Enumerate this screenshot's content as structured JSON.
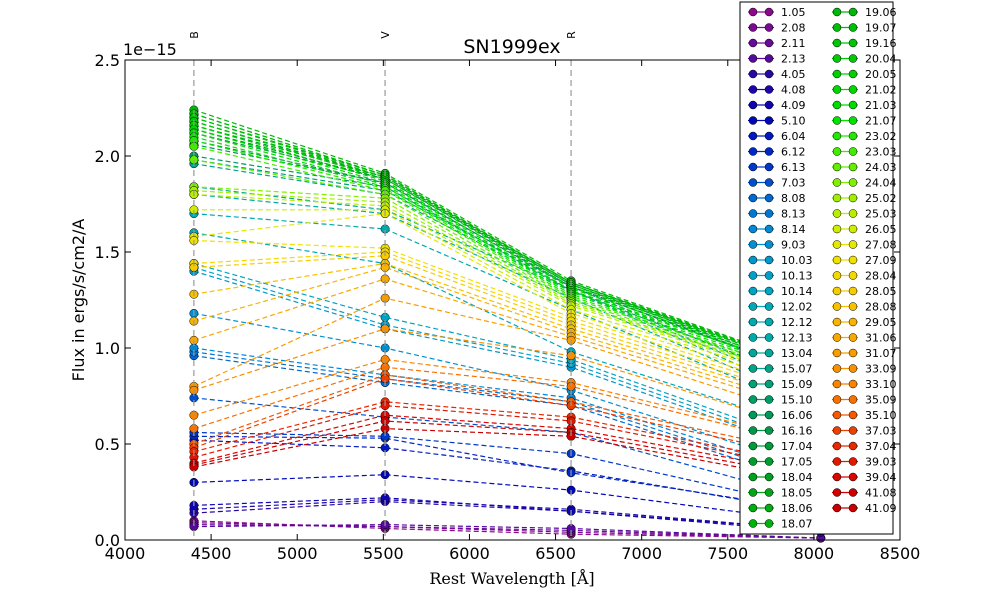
{
  "chart_data": {
    "type": "scatter",
    "title": "SN1999ex",
    "xlabel": "Rest Wavelength [Å]",
    "ylabel": "Flux in ergs/s/cm2/A",
    "y_offset_label": "1e−15",
    "xlim": [
      4000,
      8500
    ],
    "ylim": [
      0.0,
      2.5
    ],
    "x_ticks": [
      "4000",
      "4500",
      "5000",
      "5500",
      "6000",
      "6500",
      "7000",
      "7500",
      "8000",
      "8500"
    ],
    "y_ticks": [
      "0.0",
      "0.5",
      "1.0",
      "1.5",
      "2.0",
      "2.5"
    ],
    "band_markers": [
      {
        "name": "B",
        "x": 4400
      },
      {
        "name": "V",
        "x": 5510
      },
      {
        "name": "R",
        "x": 6590
      }
    ],
    "x": [
      4400,
      5510,
      6590,
      8040
    ],
    "grid": false,
    "legend_position": "top-right",
    "series": [
      {
        "name": "1.05",
        "color": "#8b0a8b",
        "values": [
          0.1,
          0.06,
          0.03,
          0.01
        ]
      },
      {
        "name": "2.08",
        "color": "#7a0a90",
        "values": [
          0.09,
          0.07,
          0.04,
          0.01
        ]
      },
      {
        "name": "2.11",
        "color": "#6a0a98",
        "values": [
          0.08,
          0.07,
          0.05,
          0.01
        ]
      },
      {
        "name": "2.13",
        "color": "#58099d",
        "values": [
          0.07,
          0.08,
          0.06,
          0.01
        ]
      },
      {
        "name": "4.05",
        "color": "#2a08a5",
        "values": [
          0.14,
          0.2,
          0.15,
          0.04
        ]
      },
      {
        "name": "4.08",
        "color": "#1c06aa",
        "values": [
          0.16,
          0.21,
          0.16,
          0.05
        ]
      },
      {
        "name": "4.09",
        "color": "#0d05b0",
        "values": [
          0.18,
          0.22,
          0.15,
          0.05
        ]
      },
      {
        "name": "5.10",
        "color": "#0008b8",
        "values": [
          0.3,
          0.34,
          0.26,
          0.09
        ]
      },
      {
        "name": "6.04",
        "color": "#0018c0",
        "values": [
          0.52,
          0.48,
          0.36,
          0.14
        ]
      },
      {
        "name": "6.12",
        "color": "#0028c4",
        "values": [
          0.54,
          0.53,
          0.35,
          0.15
        ]
      },
      {
        "name": "6.13",
        "color": "#0038c8",
        "values": [
          0.56,
          0.54,
          0.45,
          0.16
        ]
      },
      {
        "name": "7.03",
        "color": "#0050cc",
        "values": [
          0.74,
          0.64,
          0.56,
          0.2
        ]
      },
      {
        "name": "8.08",
        "color": "#0068d0",
        "values": [
          0.96,
          0.82,
          0.7,
          0.28
        ]
      },
      {
        "name": "8.13",
        "color": "#0078d2",
        "values": [
          0.98,
          0.84,
          0.72,
          0.3
        ]
      },
      {
        "name": "8.14",
        "color": "#0088d4",
        "values": [
          1.0,
          0.86,
          0.74,
          0.32
        ]
      },
      {
        "name": "9.03",
        "color": "#0090d2",
        "values": [
          1.18,
          1.0,
          0.78,
          0.36
        ]
      },
      {
        "name": "10.03",
        "color": "#0098cc",
        "values": [
          1.4,
          1.1,
          0.9,
          0.44
        ]
      },
      {
        "name": "10.13",
        "color": "#00a0c8",
        "values": [
          1.42,
          1.12,
          0.92,
          0.46
        ]
      },
      {
        "name": "10.14",
        "color": "#00a4c2",
        "values": [
          1.44,
          1.16,
          0.94,
          0.48
        ]
      },
      {
        "name": "12.02",
        "color": "#00a8b8",
        "values": [
          1.6,
          1.44,
          0.98,
          0.56
        ]
      },
      {
        "name": "12.12",
        "color": "#00aaae",
        "values": [
          1.7,
          1.62,
          1.2,
          0.66
        ]
      },
      {
        "name": "12.13",
        "color": "#00aaa8",
        "values": [
          1.8,
          1.7,
          1.26,
          0.7
        ]
      },
      {
        "name": "13.04",
        "color": "#00a898",
        "values": [
          1.84,
          1.72,
          1.3,
          0.72
        ]
      },
      {
        "name": "15.07",
        "color": "#00a488",
        "values": [
          1.96,
          1.8,
          1.3,
          0.76
        ]
      },
      {
        "name": "15.09",
        "color": "#00a078",
        "values": [
          1.98,
          1.82,
          1.32,
          0.78
        ]
      },
      {
        "name": "15.10",
        "color": "#009c68",
        "values": [
          2.0,
          1.84,
          1.3,
          0.8
        ]
      },
      {
        "name": "16.06",
        "color": "#009a58",
        "values": [
          2.06,
          1.86,
          1.32,
          0.84
        ]
      },
      {
        "name": "16.16",
        "color": "#009848",
        "values": [
          2.08,
          1.86,
          1.32,
          0.85
        ]
      },
      {
        "name": "17.04",
        "color": "#009a38",
        "values": [
          2.12,
          1.88,
          1.33,
          0.86
        ]
      },
      {
        "name": "17.05",
        "color": "#009c2c",
        "values": [
          2.14,
          1.88,
          1.33,
          0.86
        ]
      },
      {
        "name": "18.04",
        "color": "#00a020",
        "values": [
          2.16,
          1.89,
          1.34,
          0.87
        ]
      },
      {
        "name": "18.05",
        "color": "#00a618",
        "values": [
          2.18,
          1.89,
          1.34,
          0.87
        ]
      },
      {
        "name": "18.06",
        "color": "#00ac10",
        "values": [
          2.2,
          1.9,
          1.34,
          0.88
        ]
      },
      {
        "name": "18.07",
        "color": "#00b20a",
        "values": [
          2.22,
          1.9,
          1.34,
          0.88
        ]
      },
      {
        "name": "19.06",
        "color": "#00b808",
        "values": [
          2.24,
          1.91,
          1.35,
          0.89
        ]
      },
      {
        "name": "19.07",
        "color": "#00be06",
        "values": [
          2.22,
          1.9,
          1.34,
          0.89
        ]
      },
      {
        "name": "19.16",
        "color": "#00c404",
        "values": [
          2.2,
          1.89,
          1.33,
          0.88
        ]
      },
      {
        "name": "20.04",
        "color": "#00ca02",
        "values": [
          2.18,
          1.88,
          1.32,
          0.88
        ]
      },
      {
        "name": "20.05",
        "color": "#00d000",
        "values": [
          2.16,
          1.87,
          1.31,
          0.87
        ]
      },
      {
        "name": "21.02",
        "color": "#00d600",
        "values": [
          2.14,
          1.86,
          1.3,
          0.86
        ]
      },
      {
        "name": "21.03",
        "color": "#00dc00",
        "values": [
          2.12,
          1.85,
          1.29,
          0.86
        ]
      },
      {
        "name": "21.07",
        "color": "#00e200",
        "values": [
          2.1,
          1.84,
          1.28,
          0.85
        ]
      },
      {
        "name": "23.02",
        "color": "#20e800",
        "values": [
          2.08,
          1.83,
          1.27,
          0.84
        ]
      },
      {
        "name": "23.03",
        "color": "#40ec00",
        "values": [
          2.05,
          1.82,
          1.26,
          0.84
        ]
      },
      {
        "name": "24.03",
        "color": "#60f000",
        "values": [
          1.98,
          1.8,
          1.25,
          0.83
        ]
      },
      {
        "name": "24.04",
        "color": "#80f000",
        "values": [
          1.84,
          1.78,
          1.24,
          0.82
        ]
      },
      {
        "name": "25.02",
        "color": "#a0f000",
        "values": [
          1.82,
          1.76,
          1.23,
          0.82
        ]
      },
      {
        "name": "25.03",
        "color": "#b8ee00",
        "values": [
          1.8,
          1.74,
          1.22,
          0.81
        ]
      },
      {
        "name": "26.05",
        "color": "#d0ec00",
        "values": [
          1.72,
          1.72,
          1.2,
          0.8
        ]
      },
      {
        "name": "27.08",
        "color": "#e4e800",
        "values": [
          1.58,
          1.7,
          1.18,
          0.78
        ]
      },
      {
        "name": "27.09",
        "color": "#f0e000",
        "values": [
          1.56,
          1.52,
          1.16,
          0.76
        ]
      },
      {
        "name": "28.04",
        "color": "#f4d800",
        "values": [
          1.44,
          1.5,
          1.14,
          0.74
        ]
      },
      {
        "name": "28.05",
        "color": "#f6cc00",
        "values": [
          1.42,
          1.48,
          1.12,
          0.72
        ]
      },
      {
        "name": "28.08",
        "color": "#f8c000",
        "values": [
          1.28,
          1.44,
          1.1,
          0.7
        ]
      },
      {
        "name": "29.05",
        "color": "#f8b400",
        "values": [
          1.14,
          1.42,
          1.08,
          0.68
        ]
      },
      {
        "name": "31.06",
        "color": "#f8a800",
        "values": [
          1.04,
          1.36,
          1.06,
          0.66
        ]
      },
      {
        "name": "31.07",
        "color": "#f89c00",
        "values": [
          0.8,
          1.26,
          1.04,
          0.62
        ]
      },
      {
        "name": "33.09",
        "color": "#f89000",
        "values": [
          0.78,
          1.1,
          0.96,
          0.56
        ]
      },
      {
        "name": "33.10",
        "color": "#f88400",
        "values": [
          0.65,
          0.94,
          0.82,
          0.5
        ]
      },
      {
        "name": "35.09",
        "color": "#f87000",
        "values": [
          0.58,
          0.9,
          0.8,
          0.48
        ]
      },
      {
        "name": "35.10",
        "color": "#f45800",
        "values": [
          0.5,
          0.86,
          0.72,
          0.44
        ]
      },
      {
        "name": "37.03",
        "color": "#ec4000",
        "values": [
          0.48,
          0.84,
          0.7,
          0.42
        ]
      },
      {
        "name": "37.04",
        "color": "#e82800",
        "values": [
          0.46,
          0.72,
          0.64,
          0.38
        ]
      },
      {
        "name": "39.03",
        "color": "#e01800",
        "values": [
          0.43,
          0.7,
          0.62,
          0.36
        ]
      },
      {
        "name": "39.04",
        "color": "#d80800",
        "values": [
          0.4,
          0.65,
          0.58,
          0.34
        ]
      },
      {
        "name": "41.08",
        "color": "#d00000",
        "values": [
          0.39,
          0.62,
          0.56,
          0.32
        ]
      },
      {
        "name": "41.09",
        "color": "#c80000",
        "values": [
          0.38,
          0.58,
          0.54,
          0.3
        ]
      }
    ]
  }
}
